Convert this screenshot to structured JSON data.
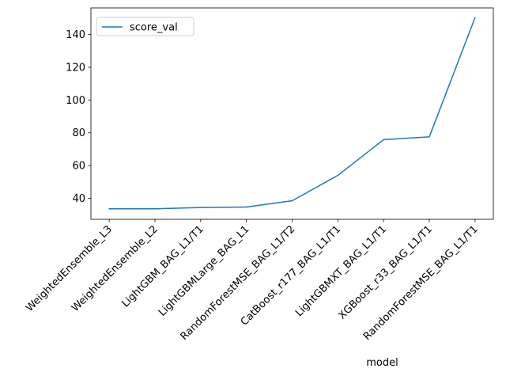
{
  "chart_data": {
    "type": "line",
    "xlabel": "model",
    "ylabel": "",
    "categories": [
      "WeightedEnsemble_L3",
      "WeightedEnsemble_L2",
      "LightGBM_BAG_L1/T1",
      "LightGBMLarge_BAG_L1",
      "RandomForestMSE_BAG_L1/T2",
      "CatBoost_r177_BAG_L1/T1",
      "LightGBMXT_BAG_L1/T1",
      "XGBoost_r33_BAG_L1/T1",
      "RandomForestMSE_BAG_L1/T1"
    ],
    "series": [
      {
        "name": "score_val",
        "color": "#1f77b4",
        "values": [
          33.6,
          33.6,
          34.4,
          34.7,
          38.5,
          54.0,
          75.8,
          77.5,
          150.3
        ]
      }
    ],
    "ylim": [
      27.2,
      156.2
    ],
    "yticks": [
      40,
      60,
      80,
      100,
      120,
      140
    ],
    "grid": false,
    "legend": "top-left"
  }
}
